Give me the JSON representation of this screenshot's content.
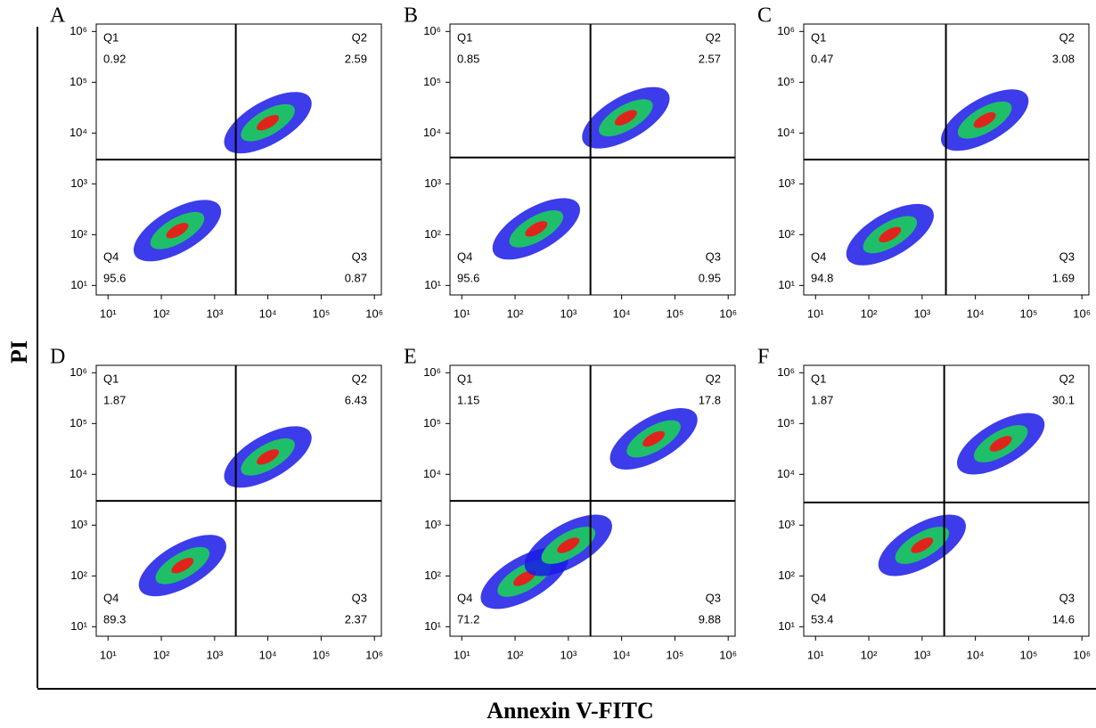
{
  "axis_titles": {
    "x": "Annexin V-FITC",
    "y": "PI"
  },
  "chart_data": [
    {
      "type": "scatter",
      "title": "A",
      "log_x": true,
      "log_y": true,
      "xlim": [
        6,
        1350000
      ],
      "ylim": [
        6.5,
        1400000
      ],
      "xticks": [
        {
          "value": 10,
          "label": "10¹"
        },
        {
          "value": 100,
          "label": "10²"
        },
        {
          "value": 1000,
          "label": "10³"
        },
        {
          "value": 10000,
          "label": "10⁴"
        },
        {
          "value": 100000,
          "label": "10⁵"
        },
        {
          "value": 1000000,
          "label": "10⁶"
        }
      ],
      "yticks": [
        {
          "value": 10,
          "label": "10¹"
        },
        {
          "value": 100,
          "label": "10²"
        },
        {
          "value": 1000,
          "label": "10³"
        },
        {
          "value": 10000,
          "label": "10⁴"
        },
        {
          "value": 100000,
          "label": "10⁵"
        },
        {
          "value": 1000000,
          "label": "10⁶"
        }
      ],
      "gate_x": 2500,
      "gate_y": 3000,
      "quadrants": [
        {
          "name": "Q1",
          "value": 0.92
        },
        {
          "name": "Q2",
          "value": 2.59
        },
        {
          "name": "Q3",
          "value": 0.87
        },
        {
          "name": "Q4",
          "value": 95.6
        }
      ],
      "x": [
        200,
        10000
      ],
      "values": [
        120,
        16000
      ]
    },
    {
      "type": "scatter",
      "title": "B",
      "log_x": true,
      "log_y": true,
      "xlim": [
        6,
        1350000
      ],
      "ylim": [
        6.5,
        1400000
      ],
      "xticks": [
        {
          "value": 10,
          "label": "10¹"
        },
        {
          "value": 100,
          "label": "10²"
        },
        {
          "value": 1000,
          "label": "10³"
        },
        {
          "value": 10000,
          "label": "10⁴"
        },
        {
          "value": 100000,
          "label": "10⁵"
        },
        {
          "value": 1000000,
          "label": "10⁶"
        }
      ],
      "yticks": [
        {
          "value": 10,
          "label": "10¹"
        },
        {
          "value": 100,
          "label": "10²"
        },
        {
          "value": 1000,
          "label": "10³"
        },
        {
          "value": 10000,
          "label": "10⁴"
        },
        {
          "value": 100000,
          "label": "10⁵"
        },
        {
          "value": 1000000,
          "label": "10⁶"
        }
      ],
      "gate_x": 2600,
      "gate_y": 3300,
      "quadrants": [
        {
          "name": "Q1",
          "value": 0.85
        },
        {
          "name": "Q2",
          "value": 2.57
        },
        {
          "name": "Q3",
          "value": 0.95
        },
        {
          "name": "Q4",
          "value": 95.6
        }
      ],
      "x": [
        250,
        12000
      ],
      "values": [
        130,
        20000
      ]
    },
    {
      "type": "scatter",
      "title": "C",
      "log_x": true,
      "log_y": true,
      "xlim": [
        6,
        1350000
      ],
      "ylim": [
        6.5,
        1400000
      ],
      "xticks": [
        {
          "value": 10,
          "label": "10¹"
        },
        {
          "value": 100,
          "label": "10²"
        },
        {
          "value": 1000,
          "label": "10³"
        },
        {
          "value": 10000,
          "label": "10⁴"
        },
        {
          "value": 100000,
          "label": "10⁵"
        },
        {
          "value": 1000000,
          "label": "10⁶"
        }
      ],
      "yticks": [
        {
          "value": 10,
          "label": "10¹"
        },
        {
          "value": 100,
          "label": "10²"
        },
        {
          "value": 1000,
          "label": "10³"
        },
        {
          "value": 10000,
          "label": "10⁴"
        },
        {
          "value": 100000,
          "label": "10⁵"
        },
        {
          "value": 1000000,
          "label": "10⁶"
        }
      ],
      "gate_x": 2800,
      "gate_y": 3000,
      "quadrants": [
        {
          "name": "Q1",
          "value": 0.47
        },
        {
          "name": "Q2",
          "value": 3.08
        },
        {
          "name": "Q3",
          "value": 1.69
        },
        {
          "name": "Q4",
          "value": 94.8
        }
      ],
      "x": [
        250,
        15000
      ],
      "values": [
        100,
        18000
      ]
    },
    {
      "type": "scatter",
      "title": "D",
      "log_x": true,
      "log_y": true,
      "xlim": [
        6,
        1350000
      ],
      "ylim": [
        6.5,
        1400000
      ],
      "xticks": [
        {
          "value": 10,
          "label": "10¹"
        },
        {
          "value": 100,
          "label": "10²"
        },
        {
          "value": 1000,
          "label": "10³"
        },
        {
          "value": 10000,
          "label": "10⁴"
        },
        {
          "value": 100000,
          "label": "10⁵"
        },
        {
          "value": 1000000,
          "label": "10⁶"
        }
      ],
      "yticks": [
        {
          "value": 10,
          "label": "10¹"
        },
        {
          "value": 100,
          "label": "10²"
        },
        {
          "value": 1000,
          "label": "10³"
        },
        {
          "value": 10000,
          "label": "10⁴"
        },
        {
          "value": 100000,
          "label": "10⁵"
        },
        {
          "value": 1000000,
          "label": "10⁶"
        }
      ],
      "gate_x": 2500,
      "gate_y": 3000,
      "quadrants": [
        {
          "name": "Q1",
          "value": 1.87
        },
        {
          "name": "Q2",
          "value": 6.43
        },
        {
          "name": "Q3",
          "value": 2.37
        },
        {
          "name": "Q4",
          "value": 89.3
        }
      ],
      "x": [
        250,
        10000
      ],
      "values": [
        160,
        22000
      ]
    },
    {
      "type": "scatter",
      "title": "E",
      "log_x": true,
      "log_y": true,
      "xlim": [
        6,
        1350000
      ],
      "ylim": [
        6.5,
        1400000
      ],
      "xticks": [
        {
          "value": 10,
          "label": "10¹"
        },
        {
          "value": 100,
          "label": "10²"
        },
        {
          "value": 1000,
          "label": "10³"
        },
        {
          "value": 10000,
          "label": "10⁴"
        },
        {
          "value": 100000,
          "label": "10⁵"
        },
        {
          "value": 1000000,
          "label": "10⁶"
        }
      ],
      "yticks": [
        {
          "value": 10,
          "label": "10¹"
        },
        {
          "value": 100,
          "label": "10²"
        },
        {
          "value": 1000,
          "label": "10³"
        },
        {
          "value": 10000,
          "label": "10⁴"
        },
        {
          "value": 100000,
          "label": "10⁵"
        },
        {
          "value": 1000000,
          "label": "10⁶"
        }
      ],
      "gate_x": 2600,
      "gate_y": 3000,
      "quadrants": [
        {
          "name": "Q1",
          "value": 1.15
        },
        {
          "name": "Q2",
          "value": 17.8
        },
        {
          "name": "Q3",
          "value": 9.88
        },
        {
          "name": "Q4",
          "value": 71.2
        }
      ],
      "x": [
        150,
        1000,
        40000
      ],
      "values": [
        90,
        400,
        50000
      ]
    },
    {
      "type": "scatter",
      "title": "F",
      "log_x": true,
      "log_y": true,
      "xlim": [
        6,
        1350000
      ],
      "ylim": [
        6.5,
        1400000
      ],
      "xticks": [
        {
          "value": 10,
          "label": "10¹"
        },
        {
          "value": 100,
          "label": "10²"
        },
        {
          "value": 1000,
          "label": "10³"
        },
        {
          "value": 10000,
          "label": "10⁴"
        },
        {
          "value": 100000,
          "label": "10⁵"
        },
        {
          "value": 1000000,
          "label": "10⁶"
        }
      ],
      "yticks": [
        {
          "value": 10,
          "label": "10¹"
        },
        {
          "value": 100,
          "label": "10²"
        },
        {
          "value": 1000,
          "label": "10³"
        },
        {
          "value": 10000,
          "label": "10⁴"
        },
        {
          "value": 100000,
          "label": "10⁵"
        },
        {
          "value": 1000000,
          "label": "10⁶"
        }
      ],
      "gate_x": 2600,
      "gate_y": 2800,
      "quadrants": [
        {
          "name": "Q1",
          "value": 1.87
        },
        {
          "name": "Q2",
          "value": 30.1
        },
        {
          "name": "Q3",
          "value": 14.6
        },
        {
          "name": "Q4",
          "value": 53.4
        }
      ],
      "x": [
        1000,
        30000
      ],
      "values": [
        400,
        40000
      ]
    }
  ]
}
